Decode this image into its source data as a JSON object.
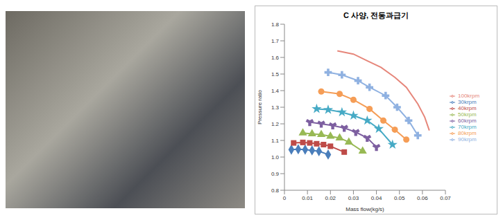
{
  "chart_data": {
    "type": "scatter",
    "title": "C 사양, 전동과급기",
    "x_label": "Mass flow(kg/s)",
    "y_label": "Pressure ratio",
    "xlim": [
      0,
      0.07
    ],
    "xticks": [
      0,
      0.01,
      0.02,
      0.03,
      0.04,
      0.05,
      0.06,
      0.07
    ],
    "ylim": [
      0.8,
      1.8
    ],
    "yticks": [
      0.8,
      0.9,
      {
        "value": 1,
        "label": "1.0"
      },
      1.1,
      1.2,
      1.3,
      1.4,
      1.5,
      1.6,
      1.7,
      1.8
    ],
    "grid": false,
    "legend": "right",
    "line_style": "solid",
    "series": [
      {
        "name": "30krpm",
        "color": "#4a7ebb",
        "marker": "diamond",
        "x": [
          0.003,
          0.006,
          0.009,
          0.012,
          0.015,
          0.019
        ],
        "values": [
          1.045,
          1.047,
          1.045,
          1.04,
          1.035,
          1.015
        ]
      },
      {
        "name": "40krpm",
        "color": "#be4b48",
        "marker": "square",
        "x": [
          0.004,
          0.008,
          0.011,
          0.014,
          0.017,
          0.02,
          0.026
        ],
        "values": [
          1.085,
          1.088,
          1.085,
          1.08,
          1.075,
          1.065,
          1.03
        ]
      },
      {
        "name": "50krpm",
        "color": "#98b954",
        "marker": "triangle",
        "x": [
          0.008,
          0.012,
          0.016,
          0.02,
          0.024,
          0.028,
          0.034
        ],
        "values": [
          1.145,
          1.14,
          1.135,
          1.125,
          1.115,
          1.09,
          1.035
        ]
      },
      {
        "name": "60krpm",
        "color": "#7d5fa0",
        "marker": "wye",
        "x": [
          0.011,
          0.016,
          0.021,
          0.026,
          0.031,
          0.036,
          0.04
        ],
        "values": [
          1.21,
          1.2,
          1.19,
          1.175,
          1.15,
          1.115,
          1.06
        ]
      },
      {
        "name": "70krpm",
        "color": "#46aac5",
        "marker": "star",
        "x": [
          0.014,
          0.019,
          0.025,
          0.03,
          0.036,
          0.041,
          0.047
        ],
        "values": [
          1.29,
          1.285,
          1.27,
          1.25,
          1.22,
          1.17,
          1.075
        ]
      },
      {
        "name": "80krpm",
        "color": "#f59d56",
        "marker": "circle",
        "x": [
          0.016,
          0.024,
          0.03,
          0.037,
          0.043,
          0.048,
          0.053
        ],
        "values": [
          1.395,
          1.38,
          1.345,
          1.29,
          1.22,
          1.165,
          1.105
        ]
      },
      {
        "name": "90krpm",
        "color": "#8fb1e1",
        "marker": "cross",
        "x": [
          0.019,
          0.025,
          0.032,
          0.037,
          0.044,
          0.049,
          0.054,
          0.058
        ],
        "values": [
          1.51,
          1.495,
          1.46,
          1.42,
          1.37,
          1.3,
          1.22,
          1.13
        ]
      },
      {
        "name": "100krpm",
        "color": "#e6867a",
        "marker": "none",
        "x": [
          0.023,
          0.03,
          0.036,
          0.042,
          0.048,
          0.053,
          0.058,
          0.061,
          0.063
        ],
        "values": [
          1.64,
          1.62,
          1.58,
          1.54,
          1.48,
          1.42,
          1.32,
          1.24,
          1.16
        ]
      }
    ]
  }
}
